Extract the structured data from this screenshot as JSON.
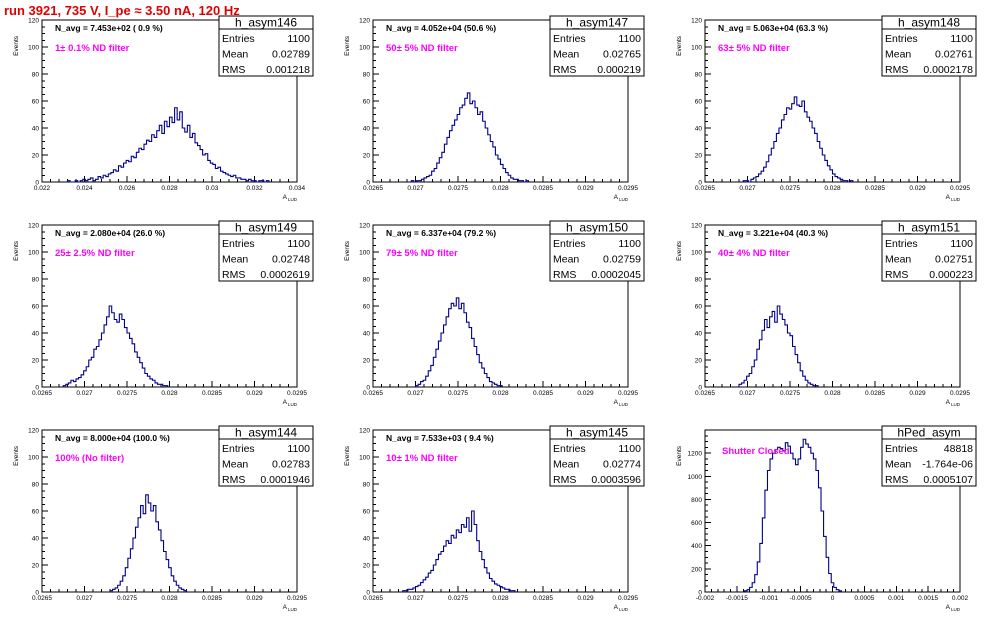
{
  "page_title": "run 3921,   735 V, I_pe ≈ 3.50 nA, 120 Hz",
  "chart_data": [
    {
      "type": "bar",
      "name": "h_asym146",
      "nav_label": "N_avg = 7.453e+02 ( 0.9 %)",
      "filter_label": "1± 0.1% ND filter",
      "stats": [
        {
          "label": "Entries",
          "value": "1100"
        },
        {
          "label": "Mean",
          "value": "0.02789"
        },
        {
          "label": "RMS",
          "value": "0.001218"
        }
      ],
      "xlabel": "A",
      "xlabel_sub": "LUD",
      "ylabel": "Events",
      "xlim": [
        0.022,
        0.034
      ],
      "ylim": [
        0,
        120
      ],
      "xticks": [
        {
          "v": 0.022,
          "t": "0.022"
        },
        {
          "v": 0.024,
          "t": "0.024"
        },
        {
          "v": 0.026,
          "t": "0.026"
        },
        {
          "v": 0.028,
          "t": "0.028"
        },
        {
          "v": 0.03,
          "t": "0.03"
        },
        {
          "v": 0.032,
          "t": "0.032"
        },
        {
          "v": 0.034,
          "t": "0.034"
        }
      ],
      "yticks": [
        {
          "v": 0,
          "t": "0"
        },
        {
          "v": 20,
          "t": "20"
        },
        {
          "v": 40,
          "t": "40"
        },
        {
          "v": 60,
          "t": "60"
        },
        {
          "v": 80,
          "t": "80"
        },
        {
          "v": 100,
          "t": "100"
        },
        {
          "v": 120,
          "t": "120"
        }
      ],
      "bin_start": 0.0232,
      "bin_width": 0.00012,
      "values": [
        1,
        0,
        0,
        1,
        0,
        1,
        2,
        1,
        2,
        3,
        1,
        2,
        4,
        3,
        5,
        4,
        6,
        7,
        9,
        8,
        12,
        11,
        14,
        16,
        15,
        19,
        18,
        22,
        25,
        24,
        28,
        31,
        30,
        35,
        33,
        38,
        42,
        36,
        45,
        41,
        48,
        44,
        55,
        46,
        52,
        40,
        37,
        42,
        33,
        36,
        29,
        27,
        24,
        20,
        21,
        16,
        14,
        13,
        10,
        11,
        8,
        7,
        6,
        5,
        4,
        5,
        3,
        3,
        2,
        2,
        1,
        2,
        1,
        1,
        0,
        1,
        1,
        0,
        1
      ]
    },
    {
      "type": "bar",
      "name": "h_asym147",
      "nav_label": "N_avg = 4.052e+04 (50.6 %)",
      "filter_label": "50± 5% ND filter",
      "stats": [
        {
          "label": "Entries",
          "value": "1100"
        },
        {
          "label": "Mean",
          "value": "0.02765"
        },
        {
          "label": "RMS",
          "value": "0.000219"
        }
      ],
      "xlabel": "A",
      "xlabel_sub": "LUD",
      "ylabel": "Events",
      "xlim": [
        0.0265,
        0.0295
      ],
      "ylim": [
        0,
        120
      ],
      "xticks": [
        {
          "v": 0.0265,
          "t": "0.0265"
        },
        {
          "v": 0.027,
          "t": "0.027"
        },
        {
          "v": 0.0275,
          "t": "0.0275"
        },
        {
          "v": 0.028,
          "t": "0.028"
        },
        {
          "v": 0.0285,
          "t": "0.0285"
        },
        {
          "v": 0.029,
          "t": "0.029"
        },
        {
          "v": 0.0295,
          "t": "0.0295"
        }
      ],
      "yticks": [
        {
          "v": 0,
          "t": "0"
        },
        {
          "v": 20,
          "t": "20"
        },
        {
          "v": 40,
          "t": "40"
        },
        {
          "v": 60,
          "t": "60"
        },
        {
          "v": 80,
          "t": "80"
        },
        {
          "v": 100,
          "t": "100"
        },
        {
          "v": 120,
          "t": "120"
        }
      ],
      "bin_start": 0.02695,
      "bin_width": 3e-05,
      "values": [
        1,
        0,
        1,
        1,
        2,
        3,
        4,
        5,
        8,
        10,
        14,
        18,
        22,
        28,
        33,
        38,
        42,
        46,
        50,
        55,
        57,
        62,
        66,
        58,
        60,
        55,
        50,
        52,
        45,
        40,
        35,
        30,
        26,
        20,
        17,
        13,
        10,
        7,
        5,
        3,
        2,
        2,
        1,
        1,
        0,
        1
      ]
    },
    {
      "type": "bar",
      "name": "h_asym148",
      "nav_label": "N_avg = 5.063e+04 (63.3 %)",
      "filter_label": "63± 5% ND filter",
      "stats": [
        {
          "label": "Entries",
          "value": "1100"
        },
        {
          "label": "Mean",
          "value": "0.02761"
        },
        {
          "label": "RMS",
          "value": "0.0002178"
        }
      ],
      "xlabel": "A",
      "xlabel_sub": "LUD",
      "ylabel": "Events",
      "xlim": [
        0.0265,
        0.0295
      ],
      "ylim": [
        0,
        120
      ],
      "xticks": [
        {
          "v": 0.0265,
          "t": "0.0265"
        },
        {
          "v": 0.027,
          "t": "0.027"
        },
        {
          "v": 0.0275,
          "t": "0.0275"
        },
        {
          "v": 0.028,
          "t": "0.028"
        },
        {
          "v": 0.0285,
          "t": "0.0285"
        },
        {
          "v": 0.029,
          "t": "0.029"
        },
        {
          "v": 0.0295,
          "t": "0.0295"
        }
      ],
      "yticks": [
        {
          "v": 0,
          "t": "0"
        },
        {
          "v": 20,
          "t": "20"
        },
        {
          "v": 40,
          "t": "40"
        },
        {
          "v": 60,
          "t": "60"
        },
        {
          "v": 80,
          "t": "80"
        },
        {
          "v": 100,
          "t": "100"
        },
        {
          "v": 120,
          "t": "120"
        }
      ],
      "bin_start": 0.02695,
      "bin_width": 3e-05,
      "values": [
        1,
        1,
        0,
        2,
        3,
        4,
        6,
        8,
        11,
        15,
        20,
        25,
        30,
        36,
        40,
        46,
        50,
        55,
        54,
        58,
        63,
        57,
        56,
        60,
        52,
        48,
        45,
        40,
        36,
        30,
        25,
        20,
        16,
        12,
        9,
        6,
        4,
        3,
        2,
        1,
        1,
        0,
        1
      ]
    },
    {
      "type": "bar",
      "name": "h_asym149",
      "nav_label": "N_avg = 2.080e+04 (26.0 %)",
      "filter_label": "25± 2.5% ND filter",
      "stats": [
        {
          "label": "Entries",
          "value": "1100"
        },
        {
          "label": "Mean",
          "value": "0.02748"
        },
        {
          "label": "RMS",
          "value": "0.0002619"
        }
      ],
      "xlabel": "A",
      "xlabel_sub": "LUD",
      "ylabel": "Events",
      "xlim": [
        0.0265,
        0.0295
      ],
      "ylim": [
        0,
        120
      ],
      "xticks": [
        {
          "v": 0.0265,
          "t": "0.0265"
        },
        {
          "v": 0.027,
          "t": "0.027"
        },
        {
          "v": 0.0275,
          "t": "0.0275"
        },
        {
          "v": 0.028,
          "t": "0.028"
        },
        {
          "v": 0.0285,
          "t": "0.0285"
        },
        {
          "v": 0.029,
          "t": "0.029"
        },
        {
          "v": 0.0295,
          "t": "0.0295"
        }
      ],
      "yticks": [
        {
          "v": 0,
          "t": "0"
        },
        {
          "v": 20,
          "t": "20"
        },
        {
          "v": 40,
          "t": "40"
        },
        {
          "v": 60,
          "t": "60"
        },
        {
          "v": 80,
          "t": "80"
        },
        {
          "v": 100,
          "t": "100"
        },
        {
          "v": 120,
          "t": "120"
        }
      ],
      "bin_start": 0.02675,
      "bin_width": 3e-05,
      "values": [
        1,
        2,
        3,
        5,
        4,
        6,
        7,
        9,
        12,
        15,
        20,
        22,
        28,
        30,
        35,
        40,
        46,
        52,
        60,
        55,
        50,
        48,
        54,
        50,
        44,
        40,
        36,
        32,
        26,
        22,
        18,
        14,
        10,
        8,
        6,
        5,
        3,
        2,
        2,
        1,
        1,
        0
      ]
    },
    {
      "type": "bar",
      "name": "h_asym150",
      "nav_label": "N_avg = 6.337e+04 (79.2 %)",
      "filter_label": "79± 5% ND filter",
      "stats": [
        {
          "label": "Entries",
          "value": "1100"
        },
        {
          "label": "Mean",
          "value": "0.02759"
        },
        {
          "label": "RMS",
          "value": "0.0002045"
        }
      ],
      "xlabel": "A",
      "xlabel_sub": "LUD",
      "ylabel": "Events",
      "xlim": [
        0.0265,
        0.0295
      ],
      "ylim": [
        0,
        120
      ],
      "xticks": [
        {
          "v": 0.0265,
          "t": "0.0265"
        },
        {
          "v": 0.027,
          "t": "0.027"
        },
        {
          "v": 0.0275,
          "t": "0.0275"
        },
        {
          "v": 0.028,
          "t": "0.028"
        },
        {
          "v": 0.0285,
          "t": "0.0285"
        },
        {
          "v": 0.029,
          "t": "0.029"
        },
        {
          "v": 0.0295,
          "t": "0.0295"
        }
      ],
      "yticks": [
        {
          "v": 0,
          "t": "0"
        },
        {
          "v": 20,
          "t": "20"
        },
        {
          "v": 40,
          "t": "40"
        },
        {
          "v": 60,
          "t": "60"
        },
        {
          "v": 80,
          "t": "80"
        },
        {
          "v": 100,
          "t": "100"
        },
        {
          "v": 120,
          "t": "120"
        }
      ],
      "bin_start": 0.027,
      "bin_width": 3e-05,
      "values": [
        1,
        2,
        4,
        5,
        8,
        12,
        16,
        22,
        28,
        34,
        40,
        46,
        52,
        58,
        62,
        60,
        66,
        58,
        62,
        55,
        48,
        44,
        36,
        30,
        24,
        18,
        14,
        10,
        7,
        4,
        3,
        2,
        1,
        1
      ]
    },
    {
      "type": "bar",
      "name": "h_asym151",
      "nav_label": "N_avg = 3.221e+04 (40.3 %)",
      "filter_label": "40± 4% ND filter",
      "stats": [
        {
          "label": "Entries",
          "value": "1100"
        },
        {
          "label": "Mean",
          "value": "0.02751"
        },
        {
          "label": "RMS",
          "value": "0.000223"
        }
      ],
      "xlabel": "A",
      "xlabel_sub": "LUD",
      "ylabel": "Events",
      "xlim": [
        0.0265,
        0.0295
      ],
      "ylim": [
        0,
        120
      ],
      "xticks": [
        {
          "v": 0.0265,
          "t": "0.0265"
        },
        {
          "v": 0.027,
          "t": "0.027"
        },
        {
          "v": 0.0275,
          "t": "0.0275"
        },
        {
          "v": 0.028,
          "t": "0.028"
        },
        {
          "v": 0.0285,
          "t": "0.0285"
        },
        {
          "v": 0.029,
          "t": "0.029"
        },
        {
          "v": 0.0295,
          "t": "0.0295"
        }
      ],
      "yticks": [
        {
          "v": 0,
          "t": "0"
        },
        {
          "v": 20,
          "t": "20"
        },
        {
          "v": 40,
          "t": "40"
        },
        {
          "v": 60,
          "t": "60"
        },
        {
          "v": 80,
          "t": "80"
        },
        {
          "v": 100,
          "t": "100"
        },
        {
          "v": 120,
          "t": "120"
        }
      ],
      "bin_start": 0.0269,
      "bin_width": 3e-05,
      "values": [
        2,
        3,
        5,
        8,
        10,
        15,
        20,
        28,
        35,
        42,
        50,
        44,
        52,
        56,
        48,
        60,
        54,
        50,
        46,
        40,
        38,
        30,
        24,
        18,
        12,
        8,
        5,
        3,
        2,
        1,
        1
      ]
    },
    {
      "type": "bar",
      "name": "h_asym144",
      "nav_label": "N_avg = 8.000e+04 (100.0 %)",
      "filter_label": "100% (No filter)",
      "stats": [
        {
          "label": "Entries",
          "value": "1100"
        },
        {
          "label": "Mean",
          "value": "0.02783"
        },
        {
          "label": "RMS",
          "value": "0.0001946"
        }
      ],
      "xlabel": "A",
      "xlabel_sub": "LUD",
      "ylabel": "Events",
      "xlim": [
        0.0265,
        0.0295
      ],
      "ylim": [
        0,
        120
      ],
      "xticks": [
        {
          "v": 0.0265,
          "t": "0.0265"
        },
        {
          "v": 0.027,
          "t": "0.027"
        },
        {
          "v": 0.0275,
          "t": "0.0275"
        },
        {
          "v": 0.028,
          "t": "0.028"
        },
        {
          "v": 0.0285,
          "t": "0.0285"
        },
        {
          "v": 0.029,
          "t": "0.029"
        },
        {
          "v": 0.0295,
          "t": "0.0295"
        }
      ],
      "yticks": [
        {
          "v": 0,
          "t": "0"
        },
        {
          "v": 20,
          "t": "20"
        },
        {
          "v": 40,
          "t": "40"
        },
        {
          "v": 60,
          "t": "60"
        },
        {
          "v": 80,
          "t": "80"
        },
        {
          "v": 100,
          "t": "100"
        },
        {
          "v": 120,
          "t": "120"
        }
      ],
      "bin_start": 0.0273,
      "bin_width": 3e-05,
      "values": [
        1,
        2,
        3,
        5,
        8,
        12,
        18,
        25,
        32,
        40,
        48,
        55,
        64,
        58,
        72,
        66,
        60,
        64,
        52,
        46,
        38,
        30,
        24,
        18,
        12,
        8,
        5,
        3,
        2,
        1
      ]
    },
    {
      "type": "bar",
      "name": "h_asym145",
      "nav_label": "N_avg = 7.533e+03 ( 9.4 %)",
      "filter_label": "10± 1% ND filter",
      "stats": [
        {
          "label": "Entries",
          "value": "1100"
        },
        {
          "label": "Mean",
          "value": "0.02774"
        },
        {
          "label": "RMS",
          "value": "0.0003596"
        }
      ],
      "xlabel": "A",
      "xlabel_sub": "LUD",
      "ylabel": "Events",
      "xlim": [
        0.0265,
        0.0295
      ],
      "ylim": [
        0,
        120
      ],
      "xticks": [
        {
          "v": 0.0265,
          "t": "0.0265"
        },
        {
          "v": 0.027,
          "t": "0.027"
        },
        {
          "v": 0.0275,
          "t": "0.0275"
        },
        {
          "v": 0.028,
          "t": "0.028"
        },
        {
          "v": 0.0285,
          "t": "0.0285"
        },
        {
          "v": 0.029,
          "t": "0.029"
        },
        {
          "v": 0.0295,
          "t": "0.0295"
        }
      ],
      "yticks": [
        {
          "v": 0,
          "t": "0"
        },
        {
          "v": 20,
          "t": "20"
        },
        {
          "v": 40,
          "t": "40"
        },
        {
          "v": 60,
          "t": "60"
        },
        {
          "v": 80,
          "t": "80"
        },
        {
          "v": 100,
          "t": "100"
        },
        {
          "v": 120,
          "t": "120"
        }
      ],
      "bin_start": 0.02685,
      "bin_width": 3e-05,
      "values": [
        1,
        1,
        2,
        2,
        3,
        4,
        5,
        7,
        9,
        11,
        14,
        16,
        20,
        24,
        28,
        30,
        34,
        38,
        36,
        42,
        40,
        46,
        44,
        50,
        48,
        55,
        45,
        60,
        50,
        38,
        30,
        24,
        18,
        14,
        10,
        8,
        6,
        5,
        4,
        3,
        2,
        2,
        1,
        1
      ]
    },
    {
      "type": "bar",
      "name": "hPed_asym",
      "nav_label": "",
      "filter_label": "Shutter Closed",
      "stats": [
        {
          "label": "Entries",
          "value": "48818"
        },
        {
          "label": "Mean",
          "value": "-1.764e-06"
        },
        {
          "label": "RMS",
          "value": "0.0005107"
        }
      ],
      "xlabel": "A",
      "xlabel_sub": "LUD",
      "ylabel": "Events",
      "xlim": [
        -0.002,
        0.002
      ],
      "ylim": [
        0,
        1400
      ],
      "xticks": [
        {
          "v": -0.002,
          "t": "-0.002"
        },
        {
          "v": -0.0015,
          "t": "-0.0015"
        },
        {
          "v": -0.001,
          "t": "-0.001"
        },
        {
          "v": -0.0005,
          "t": "-0.0005"
        },
        {
          "v": 0,
          "t": "0"
        },
        {
          "v": 0.0005,
          "t": "0.0005"
        },
        {
          "v": 0.001,
          "t": "0.001"
        },
        {
          "v": 0.0015,
          "t": "0.0015"
        },
        {
          "v": 0.002,
          "t": "0.002"
        }
      ],
      "yticks": [
        {
          "v": 0,
          "t": "0"
        },
        {
          "v": 200,
          "t": "200"
        },
        {
          "v": 400,
          "t": "400"
        },
        {
          "v": 600,
          "t": "600"
        },
        {
          "v": 800,
          "t": "800"
        },
        {
          "v": 1000,
          "t": "1000"
        },
        {
          "v": 1200,
          "t": "1200"
        }
      ],
      "bin_start": -0.00138,
      "bin_width": 4e-05,
      "values": [
        10,
        20,
        40,
        80,
        150,
        260,
        420,
        640,
        880,
        1050,
        1150,
        1200,
        1230,
        1250,
        1240,
        1220,
        1290,
        1260,
        1200,
        1150,
        1100,
        1150,
        1250,
        1320,
        1280,
        1250,
        1200,
        1150,
        1050,
        900,
        700,
        480,
        300,
        160,
        80,
        40,
        20,
        10
      ]
    }
  ]
}
